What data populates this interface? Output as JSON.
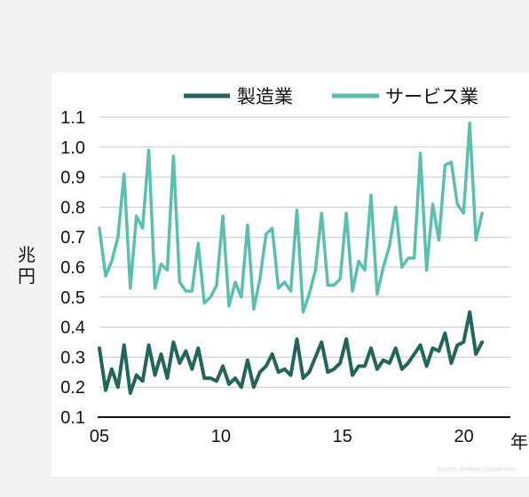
{
  "chart_data": {
    "type": "line",
    "x_start_year_label": "05",
    "xticks": [
      "05",
      "10",
      "15",
      "20"
    ],
    "xunit": "年",
    "ylabel": "兆円",
    "yticks": [
      "0.1",
      "0.2",
      "0.3",
      "0.4",
      "0.5",
      "0.6",
      "0.7",
      "0.8",
      "0.9",
      "1.0",
      "1.1"
    ],
    "ylim": [
      0.1,
      1.1
    ],
    "xlim": [
      2005,
      2021
    ],
    "grid": "horizontal",
    "legend_position": "top",
    "source": "Source: Refinitiv Datastream",
    "series": [
      {
        "name": "製造業",
        "color": "#23655a",
        "values": [
          0.33,
          0.19,
          0.26,
          0.2,
          0.34,
          0.18,
          0.24,
          0.22,
          0.34,
          0.24,
          0.31,
          0.23,
          0.35,
          0.28,
          0.32,
          0.26,
          0.33,
          0.23,
          0.23,
          0.22,
          0.27,
          0.21,
          0.23,
          0.2,
          0.29,
          0.2,
          0.25,
          0.27,
          0.31,
          0.25,
          0.26,
          0.24,
          0.36,
          0.23,
          0.25,
          0.3,
          0.35,
          0.25,
          0.26,
          0.28,
          0.36,
          0.24,
          0.27,
          0.27,
          0.33,
          0.26,
          0.29,
          0.28,
          0.33,
          0.26,
          0.28,
          0.31,
          0.34,
          0.27,
          0.33,
          0.32,
          0.38,
          0.28,
          0.34,
          0.35,
          0.45,
          0.31,
          0.35
        ]
      },
      {
        "name": "サービス業",
        "color": "#5bbfaf",
        "values": [
          0.73,
          0.57,
          0.62,
          0.7,
          0.91,
          0.53,
          0.77,
          0.73,
          0.99,
          0.53,
          0.61,
          0.59,
          0.97,
          0.55,
          0.52,
          0.52,
          0.68,
          0.48,
          0.5,
          0.54,
          0.77,
          0.47,
          0.55,
          0.5,
          0.74,
          0.46,
          0.56,
          0.71,
          0.73,
          0.53,
          0.55,
          0.52,
          0.79,
          0.45,
          0.51,
          0.59,
          0.78,
          0.54,
          0.54,
          0.56,
          0.78,
          0.52,
          0.62,
          0.59,
          0.84,
          0.51,
          0.6,
          0.67,
          0.8,
          0.6,
          0.63,
          0.63,
          0.98,
          0.59,
          0.81,
          0.69,
          0.94,
          0.95,
          0.81,
          0.78,
          1.08,
          0.69,
          0.78
        ]
      }
    ]
  }
}
